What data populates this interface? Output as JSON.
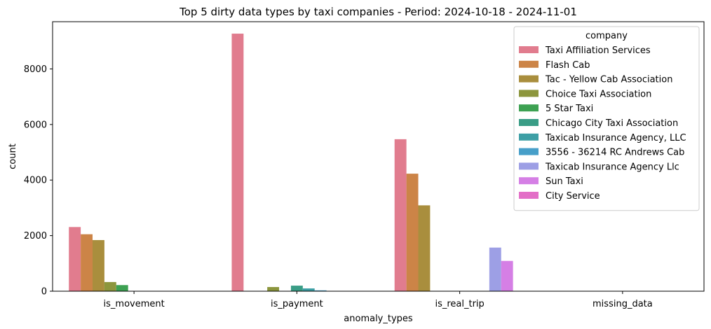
{
  "chart_data": {
    "type": "bar",
    "title": "Top 5 dirty data types by taxi companies - Period: 2024-10-18 - 2024-11-01",
    "xlabel": "anomaly_types",
    "ylabel": "count",
    "ylim": [
      0,
      9700
    ],
    "yticks": [
      0,
      2000,
      4000,
      6000,
      8000
    ],
    "grid": false,
    "legend_title": "company",
    "legend_position": "top-right",
    "categories": [
      "is_movement",
      "is_payment",
      "is_real_trip",
      "missing_data"
    ],
    "series": [
      {
        "name": "Taxi Affiliation Services",
        "color": "#e17c8e",
        "values": [
          2310,
          9270,
          5470,
          0
        ]
      },
      {
        "name": "Flash Cab",
        "color": "#cc8447",
        "values": [
          2050,
          0,
          4230,
          0
        ]
      },
      {
        "name": "Tac - Yellow Cab Association",
        "color": "#a98e3d",
        "values": [
          1840,
          0,
          3090,
          0
        ]
      },
      {
        "name": "Choice Taxi Association",
        "color": "#8c963d",
        "values": [
          330,
          150,
          0,
          0
        ]
      },
      {
        "name": "5 Star Taxi",
        "color": "#3da152",
        "values": [
          220,
          0,
          0,
          0
        ]
      },
      {
        "name": "Chicago City Taxi Association",
        "color": "#3a9d86",
        "values": [
          0,
          200,
          0,
          0
        ]
      },
      {
        "name": "Taxicab Insurance Agency, LLC",
        "color": "#3d9fa5",
        "values": [
          0,
          100,
          0,
          0
        ]
      },
      {
        "name": "3556 - 36214 RC Andrews Cab",
        "color": "#479fc9",
        "values": [
          0,
          30,
          0,
          0
        ]
      },
      {
        "name": "Taxicab Insurance Agency Llc",
        "color": "#9d9fe5",
        "values": [
          0,
          0,
          1570,
          0
        ]
      },
      {
        "name": "Sun Taxi",
        "color": "#d57fe5",
        "values": [
          0,
          0,
          1090,
          0
        ]
      },
      {
        "name": "City Service",
        "color": "#e36fc7",
        "values": [
          0,
          0,
          0,
          0
        ]
      }
    ]
  }
}
